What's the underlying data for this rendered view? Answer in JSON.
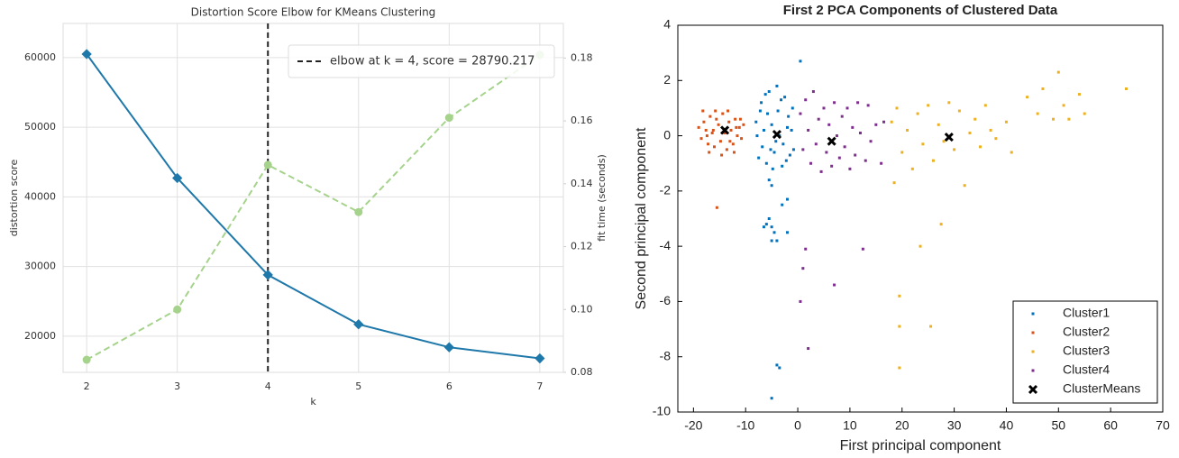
{
  "chart_data": [
    {
      "type": "line",
      "title": "Distortion Score Elbow for KMeans Clustering",
      "x_label": "k",
      "y_label": "distortion score",
      "y2_label": "fit time (seconds)",
      "x": [
        2,
        3,
        4,
        5,
        6,
        7
      ],
      "xlim": [
        1.74,
        7.26
      ],
      "xticks": [
        2,
        3,
        4,
        5,
        6,
        7
      ],
      "ylim": [
        14800,
        64900
      ],
      "yticks": [
        20000,
        30000,
        40000,
        50000,
        60000
      ],
      "y2lim": [
        0.08,
        0.191
      ],
      "y2ticks": [
        0.08,
        {
          "value": 0.1,
          "label": "0.10"
        },
        0.12,
        0.14,
        0.16,
        0.18
      ],
      "grid": true,
      "series": [
        {
          "color": "#1f78aa",
          "values": [
            60500,
            42700,
            28790,
            21700,
            18400,
            16800
          ]
        },
        {
          "color": "#a6d38c",
          "axis": "y2",
          "values": [
            0.084,
            0.1,
            0.146,
            0.131,
            0.161,
            0.181
          ]
        }
      ],
      "elbow": {
        "x": 4,
        "label": "elbow at k = 4, score = 28790.217"
      },
      "legend": "upper right"
    },
    {
      "type": "scatter",
      "title": "First 2 PCA Components of Clustered Data",
      "x_label": "First principal component",
      "y_label": "Second principal component",
      "xlim": [
        -23,
        70
      ],
      "xticks": [
        -20,
        -10,
        0,
        10,
        20,
        30,
        40,
        50,
        60,
        70
      ],
      "ylim": [
        -10,
        4
      ],
      "yticks": [
        -10,
        -8,
        -6,
        -4,
        -2,
        0,
        2,
        4
      ],
      "legend": "lower right",
      "series": [
        {
          "name": "Cluster1",
          "color": "#0072bd",
          "x": [
            -8,
            -7.5,
            -7,
            -6.5,
            -6,
            -5.5,
            -5,
            -4.5,
            -4,
            -3.5,
            -3,
            -2.5,
            -2,
            -1.5,
            -1,
            -7.8,
            -6.8,
            -5.8,
            -4.8,
            -3.8,
            -2.8,
            -1.8,
            -0.8,
            -6.2,
            -4.2,
            -2.2,
            -7.2,
            -5.2,
            -3.2,
            -1.2,
            0.5,
            -5.5,
            -5,
            -2,
            -3,
            -6,
            -5.5,
            -5,
            -4.5,
            -4,
            -2,
            -5,
            -4,
            -3.5,
            -5,
            -6.5
          ],
          "values": [
            0.5,
            -0.8,
            1.2,
            0.2,
            -1,
            1.6,
            0.4,
            -0.6,
            1.8,
            0,
            -1.1,
            1.4,
            0.3,
            -0.7,
            1,
            0,
            -0.4,
            0.8,
            -1.2,
            0.9,
            -0.3,
            0.7,
            -0.5,
            1.5,
            -0.2,
            -0.9,
            0.9,
            -0.5,
            1.3,
            0.2,
            2.7,
            -1.6,
            -1.8,
            -2.3,
            -2.5,
            -3.2,
            -3,
            -3.3,
            -3.5,
            -3.8,
            -3.5,
            -3.8,
            -8.3,
            -8.4,
            -9.5,
            -3.3
          ]
        },
        {
          "name": "Cluster2",
          "color": "#d95319",
          "x": [
            -19,
            -18.5,
            -18,
            -17.6,
            -17.2,
            -16.8,
            -16.4,
            -16,
            -15.6,
            -15.2,
            -14.8,
            -14.4,
            -14,
            -13.6,
            -13.2,
            -12.8,
            -12.4,
            -12,
            -11.6,
            -11.2,
            -10.8,
            -10.4,
            -18.2,
            -17,
            -15.8,
            -14.6,
            -13.4,
            -12.2,
            -11,
            -16.2,
            -15.5,
            -17.4,
            -13,
            -11.8
          ],
          "values": [
            0.3,
            -0.1,
            0.5,
            0.2,
            -0.3,
            0.7,
            0.1,
            -0.4,
            0.6,
            0.4,
            -0.2,
            0.8,
            0.1,
            -0.5,
            0.5,
            0.2,
            -0.3,
            0.6,
            0,
            0.3,
            -0.1,
            0.4,
            0.9,
            -0.6,
            0.9,
            -0.7,
            0.9,
            -0.6,
            0.6,
            0.2,
            -2.6,
            0,
            -0.2,
            0.3
          ]
        },
        {
          "name": "Cluster3",
          "color": "#edb120",
          "x": [
            18,
            18.5,
            19,
            20,
            21,
            22,
            23,
            24,
            25,
            26,
            27,
            28,
            29,
            30,
            31,
            32,
            33,
            34,
            35,
            36,
            37,
            38,
            40,
            41,
            44,
            46,
            47,
            49,
            50,
            51,
            52,
            54,
            55,
            63,
            19.5,
            19.5,
            19.5,
            23.5,
            25.5,
            27.5
          ],
          "values": [
            0.5,
            -1.7,
            1,
            -0.6,
            0.2,
            -1.2,
            0.8,
            -0.3,
            1.1,
            -0.9,
            0.4,
            -0.2,
            1.2,
            -0.5,
            0.9,
            -1.8,
            0.1,
            0.6,
            -0.4,
            1.1,
            0.2,
            -0.1,
            0.5,
            -0.6,
            1.4,
            0.8,
            1.7,
            0.6,
            2.3,
            1.1,
            0.6,
            1.5,
            0.8,
            1.7,
            -5.8,
            -6.9,
            -8.4,
            -4,
            -6.9,
            -3.2
          ]
        },
        {
          "name": "Cluster4",
          "color": "#7e2f8e",
          "x": [
            0.5,
            1,
            1.5,
            2,
            2.5,
            3,
            3.5,
            4,
            4.5,
            5,
            5.5,
            6,
            6.5,
            7,
            7.5,
            8,
            8.5,
            9,
            9.5,
            10,
            10.5,
            11,
            11.5,
            12,
            13,
            13.5,
            14,
            15,
            16,
            16.5,
            1.5,
            1,
            0.5,
            2,
            7,
            12.5
          ],
          "values": [
            0.8,
            -0.5,
            1.3,
            0.2,
            -1,
            1.6,
            -0.3,
            0.6,
            -1.3,
            1,
            -0.6,
            0.4,
            -1.1,
            1.2,
            0,
            -0.8,
            0.7,
            -0.4,
            1,
            -1.2,
            0.3,
            -0.7,
            1.2,
            0.1,
            -0.9,
            1.1,
            -0.2,
            0.4,
            -1,
            0.5,
            -4.1,
            -4.8,
            -6,
            -7.7,
            -5.4,
            -4.1
          ]
        },
        {
          "name": "ClusterMeans",
          "color": "#000000",
          "marker": "x",
          "x": [
            -14,
            -4,
            6.5,
            29
          ],
          "values": [
            0.2,
            0.05,
            -0.2,
            -0.05
          ]
        }
      ]
    }
  ]
}
